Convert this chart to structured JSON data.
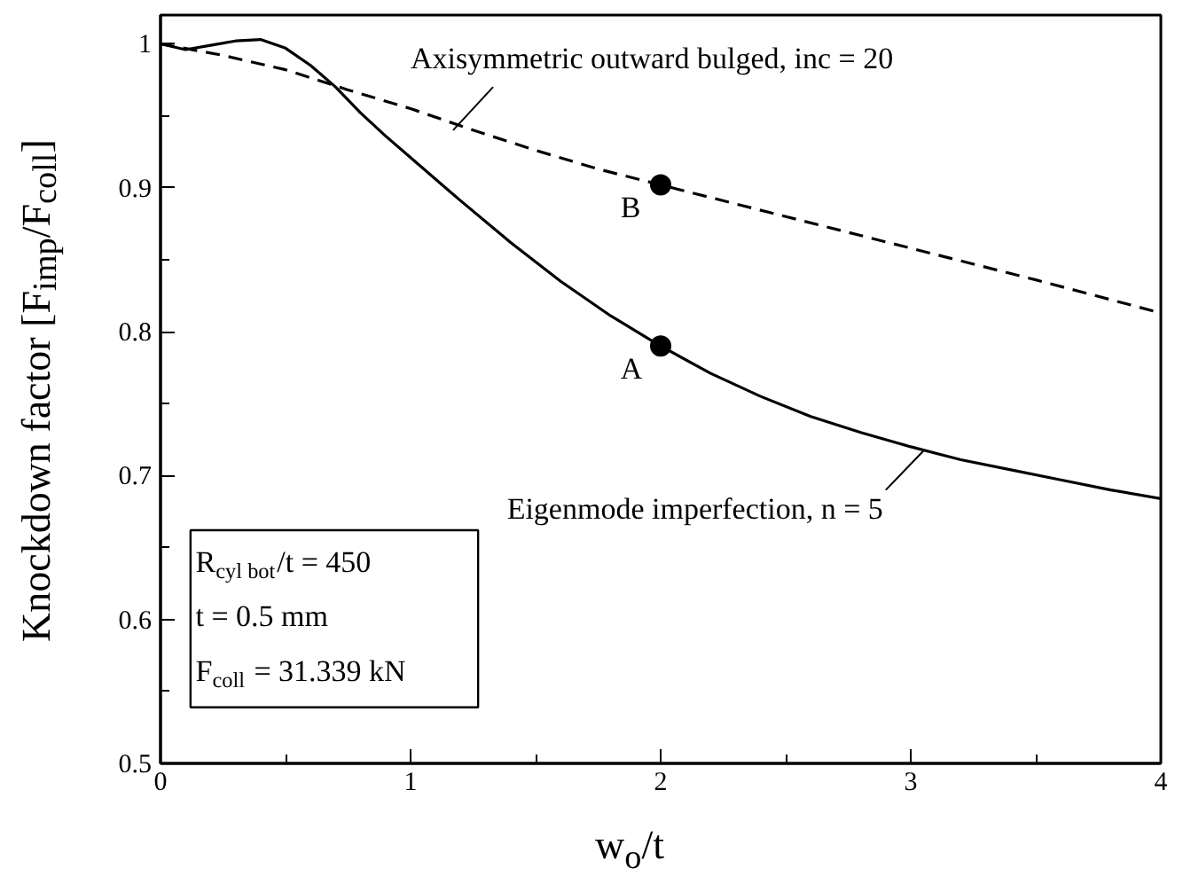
{
  "chart_data": {
    "type": "line",
    "xlabel": "w$_{o}$/t",
    "ylabel": "Knockdown factor [F$_{imp}$/F$_{coll}$]",
    "xlim": [
      0,
      4
    ],
    "ylim": [
      0.5,
      1.02
    ],
    "xticks": [
      0,
      {
        "value": 0.5,
        "label": null
      },
      1,
      {
        "value": 1.5,
        "label": null
      },
      2,
      {
        "value": 2.5,
        "label": null
      },
      3,
      {
        "value": 3.5,
        "label": null
      },
      4
    ],
    "yticks": [
      0.5,
      {
        "value": 0.55,
        "label": null
      },
      0.6,
      {
        "value": 0.65,
        "label": null
      },
      0.7,
      {
        "value": 0.75,
        "label": null
      },
      0.8,
      {
        "value": 0.85,
        "label": null
      },
      0.9,
      {
        "value": 0.95,
        "label": null
      },
      1
    ],
    "grid": false,
    "series": [
      {
        "color": "#000000",
        "line_style": "solid",
        "x": [
          0,
          0.1,
          0.2,
          0.3,
          0.4,
          0.5,
          0.6,
          0.7,
          0.8,
          0.9,
          1.0,
          1.2,
          1.4,
          1.6,
          1.8,
          2.0,
          2.2,
          2.4,
          2.6,
          2.8,
          3.0,
          3.2,
          3.4,
          3.6,
          3.8,
          4.0
        ],
        "values": [
          1.0,
          0.996,
          0.999,
          1.002,
          1.003,
          0.997,
          0.985,
          0.97,
          0.952,
          0.936,
          0.921,
          0.891,
          0.862,
          0.835,
          0.811,
          0.79,
          0.771,
          0.755,
          0.741,
          0.73,
          0.72,
          0.711,
          0.704,
          0.697,
          0.69,
          0.684
        ]
      },
      {
        "color": "#000000",
        "line_style": "dashed",
        "x": [
          0,
          0.25,
          0.5,
          0.75,
          1.0,
          1.25,
          1.5,
          1.75,
          2.0,
          2.5,
          3.0,
          3.5,
          4.0
        ],
        "values": [
          1.0,
          0.992,
          0.982,
          0.968,
          0.955,
          0.94,
          0.926,
          0.913,
          0.902,
          0.88,
          0.858,
          0.836,
          0.813
        ]
      },
      {
        "type": "scatter",
        "marker": "circle",
        "color": "#000000",
        "x": [
          2,
          2
        ],
        "values": [
          0.79,
          0.902
        ]
      }
    ],
    "annotations": [
      {
        "text": "Axisymmetric outward bulged, inc = 20",
        "x": 1.17,
        "y": 0.94
      },
      {
        "text": "Eigenmode imperfection, n = 5",
        "x": 3.05,
        "y": 0.717
      },
      {
        "text": "A",
        "x": 2,
        "y": 0.79
      },
      {
        "text": "B",
        "x": 2,
        "y": 0.902
      },
      "R$_{cyl bot}$/t = 450",
      "t = 0.5 mm",
      "F$_{coll}$ = 31.339 kN"
    ]
  }
}
